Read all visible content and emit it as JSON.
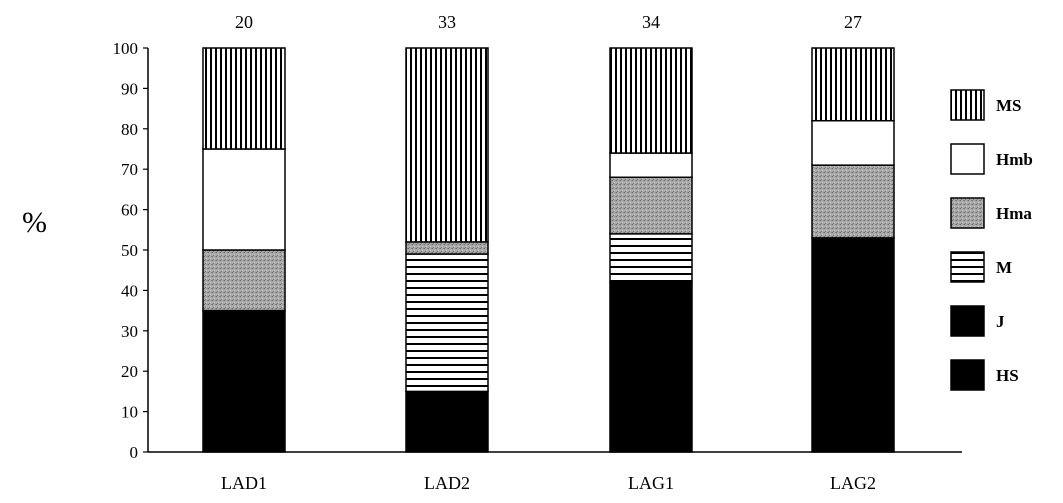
{
  "chart_data": {
    "type": "bar",
    "stacked": true,
    "percent": true,
    "categories": [
      "LAD1",
      "LAD2",
      "LAG1",
      "LAG2"
    ],
    "top_labels": [
      "20",
      "33",
      "34",
      "27"
    ],
    "ylabel": "%",
    "ylim": [
      0,
      100
    ],
    "yticks": [
      "0",
      "10",
      "20",
      "30",
      "40",
      "50",
      "60",
      "70",
      "80",
      "90",
      "100"
    ],
    "grid": false,
    "legend_position": "right",
    "series": [
      {
        "name": "HS",
        "pattern": "solid-black",
        "values": [
          35,
          15,
          42,
          53
        ]
      },
      {
        "name": "J",
        "pattern": "solid-black",
        "values": [
          0,
          0,
          0,
          0
        ]
      },
      {
        "name": "M",
        "pattern": "horizontal-stripes",
        "values": [
          0,
          34,
          12,
          0
        ]
      },
      {
        "name": "Hma",
        "pattern": "gray-dots",
        "values": [
          15,
          3,
          14,
          18
        ]
      },
      {
        "name": "Hmb",
        "pattern": "white",
        "values": [
          25,
          0,
          6,
          11
        ]
      },
      {
        "name": "MS",
        "pattern": "vertical-stripes",
        "values": [
          25,
          48,
          26,
          18
        ]
      }
    ],
    "legend_order": [
      "MS",
      "Hmb",
      "Hma",
      "M",
      "J",
      "HS"
    ]
  }
}
